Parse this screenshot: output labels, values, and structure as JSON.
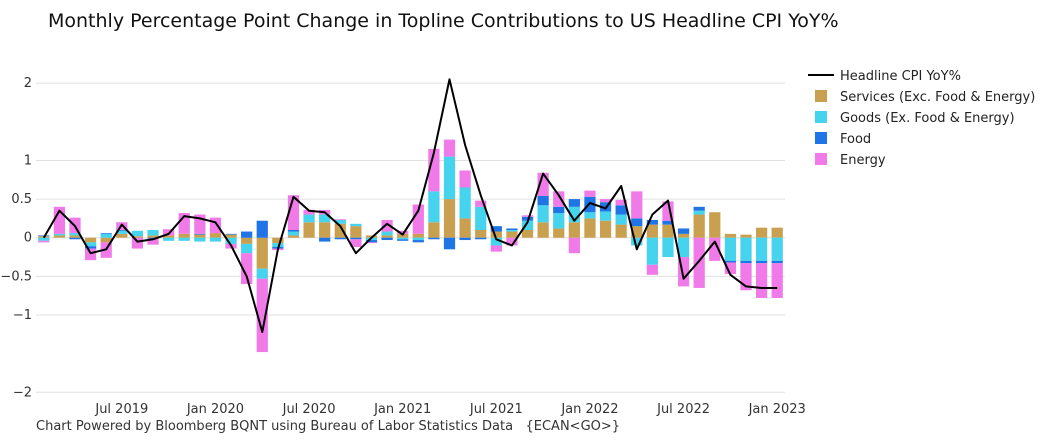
{
  "title": "Monthly Percentage Point Change in Topline Contributions to US Headline CPI YoY%",
  "footer": {
    "source": "Chart Powered by Bloomberg BQNT using Bureau of Labor Statistics Data",
    "ticker": "{ECAN<GO>}"
  },
  "colors": {
    "services": "#c9a050",
    "goods": "#45d3ee",
    "food": "#1f75e6",
    "energy": "#f07ae8",
    "headline": "#000000",
    "grid": "#e0e0e0"
  },
  "chart_data": {
    "type": "bar",
    "stacked": true,
    "ylim": [
      -2.1,
      2.3
    ],
    "yticks": [
      2,
      1,
      0.5,
      0,
      -0.5,
      -1,
      -2
    ],
    "ytick_labels": [
      "2",
      "1",
      "0.5",
      "0",
      "−0.5",
      "−1",
      "−2"
    ],
    "xtick_labels": [
      {
        "month": "2019-07",
        "label": "Jul 2019"
      },
      {
        "month": "2020-01",
        "label": "Jan 2020"
      },
      {
        "month": "2020-07",
        "label": "Jul 2020"
      },
      {
        "month": "2021-01",
        "label": "Jan 2021"
      },
      {
        "month": "2021-07",
        "label": "Jul 2021"
      },
      {
        "month": "2022-01",
        "label": "Jan 2022"
      },
      {
        "month": "2022-07",
        "label": "Jul 2022"
      },
      {
        "month": "2023-01",
        "label": "Jan 2023"
      }
    ],
    "x": [
      "2019-02",
      "2019-03",
      "2019-04",
      "2019-05",
      "2019-06",
      "2019-07",
      "2019-08",
      "2019-09",
      "2019-10",
      "2019-11",
      "2019-12",
      "2020-01",
      "2020-02",
      "2020-03",
      "2020-04",
      "2020-05",
      "2020-06",
      "2020-07",
      "2020-08",
      "2020-09",
      "2020-10",
      "2020-11",
      "2020-12",
      "2021-01",
      "2021-02",
      "2021-03",
      "2021-04",
      "2021-05",
      "2021-06",
      "2021-07",
      "2021-08",
      "2021-09",
      "2021-10",
      "2021-11",
      "2021-12",
      "2022-01",
      "2022-02",
      "2022-03",
      "2022-04",
      "2022-05",
      "2022-06",
      "2022-07",
      "2022-08",
      "2022-09",
      "2022-10",
      "2022-11",
      "2022-12",
      "2023-01"
    ],
    "legend_position": "top-right",
    "series": [
      {
        "name": "Headline CPI YoY%",
        "type": "line",
        "values": [
          0.0,
          0.35,
          0.15,
          -0.2,
          -0.15,
          0.17,
          -0.05,
          -0.02,
          0.05,
          0.28,
          0.25,
          0.2,
          -0.1,
          -0.5,
          -1.22,
          -0.15,
          0.53,
          0.35,
          0.33,
          0.15,
          -0.2,
          0.0,
          0.18,
          0.04,
          0.35,
          1.1,
          2.05,
          1.2,
          0.55,
          -0.02,
          -0.1,
          0.2,
          0.83,
          0.55,
          0.22,
          0.45,
          0.38,
          0.67,
          -0.15,
          0.3,
          0.48,
          -0.53,
          -0.3,
          -0.05,
          -0.48,
          -0.63,
          -0.65,
          -0.65
        ]
      },
      {
        "name": "Services (Exc. Food & Energy)",
        "type": "bar",
        "values": [
          0.02,
          0.03,
          0.03,
          -0.06,
          -0.06,
          0.05,
          0.02,
          0.03,
          0.03,
          0.05,
          0.04,
          0.06,
          0.04,
          -0.08,
          -0.4,
          -0.07,
          0.03,
          0.2,
          0.2,
          0.18,
          0.15,
          0.03,
          0.03,
          0.05,
          0.05,
          0.2,
          0.5,
          0.25,
          0.1,
          0.08,
          0.08,
          0.1,
          0.2,
          0.12,
          0.2,
          0.25,
          0.22,
          0.17,
          0.15,
          0.17,
          0.17,
          0.05,
          0.3,
          0.33,
          0.05,
          0.04,
          0.13,
          0.13
        ]
      },
      {
        "name": "Goods (Ex. Food & Energy)",
        "type": "bar",
        "values": [
          -0.04,
          0.02,
          0.03,
          -0.05,
          0.05,
          0.04,
          0.07,
          0.07,
          -0.04,
          -0.04,
          -0.05,
          -0.05,
          -0.08,
          -0.12,
          -0.13,
          -0.05,
          0.05,
          0.1,
          0.1,
          0.05,
          0.03,
          -0.03,
          0.05,
          -0.02,
          -0.03,
          0.4,
          0.55,
          0.4,
          0.3,
          -0.1,
          0.02,
          0.12,
          0.22,
          0.2,
          0.2,
          0.08,
          0.12,
          0.13,
          -0.1,
          -0.35,
          -0.25,
          -0.25,
          0.05,
          0.0,
          -0.3,
          -0.3,
          -0.3,
          -0.3
        ]
      },
      {
        "name": "Food",
        "type": "bar",
        "values": [
          0.01,
          0.0,
          -0.02,
          -0.03,
          0.01,
          0.01,
          0.0,
          -0.01,
          0.0,
          0.0,
          0.01,
          0.0,
          0.01,
          0.08,
          0.22,
          -0.02,
          0.02,
          0.0,
          -0.05,
          -0.02,
          -0.02,
          -0.03,
          -0.03,
          -0.02,
          -0.03,
          -0.02,
          -0.15,
          -0.03,
          -0.02,
          0.07,
          0.02,
          0.05,
          0.12,
          0.08,
          0.1,
          0.2,
          0.12,
          0.12,
          0.1,
          0.06,
          0.05,
          0.07,
          0.05,
          0.0,
          -0.02,
          -0.03,
          -0.03,
          -0.03
        ]
      },
      {
        "name": "Energy",
        "type": "bar",
        "values": [
          -0.02,
          0.35,
          0.2,
          -0.15,
          -0.2,
          0.1,
          -0.14,
          -0.08,
          0.08,
          0.27,
          0.25,
          0.2,
          -0.06,
          -0.4,
          -0.95,
          -0.02,
          0.45,
          0.06,
          0.06,
          0.01,
          -0.1,
          -0.01,
          0.15,
          0.04,
          0.38,
          0.55,
          0.22,
          0.22,
          0.08,
          -0.08,
          -0.1,
          0.02,
          0.3,
          0.2,
          -0.2,
          0.08,
          0.04,
          0.07,
          0.35,
          -0.13,
          0.25,
          -0.38,
          -0.65,
          -0.3,
          -0.15,
          -0.35,
          -0.45,
          -0.45
        ]
      }
    ]
  }
}
